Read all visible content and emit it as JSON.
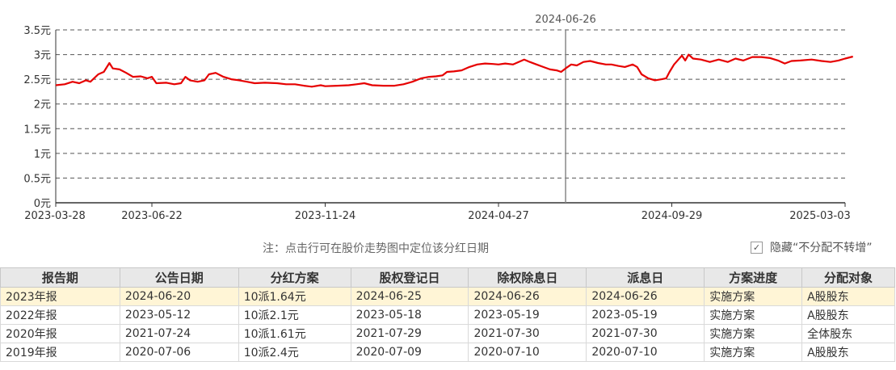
{
  "chart_data": {
    "type": "line",
    "y_ticks": [
      "3.5元",
      "3元",
      "2.5元",
      "2元",
      "1.5元",
      "1元",
      "0.5元",
      "0元"
    ],
    "y_tick_values": [
      3.5,
      3.0,
      2.5,
      2.0,
      1.5,
      1.0,
      0.5,
      0.0
    ],
    "ylim": [
      0,
      3.5
    ],
    "x_ticks": [
      "2023-03-28",
      "2023-06-22",
      "2023-11-24",
      "2024-04-27",
      "2024-09-29",
      "2025-03-03"
    ],
    "xlim": [
      "2023-03-28",
      "2025-03-03"
    ],
    "marker_label": "2024-06-26",
    "marker_date": "2024-06-26",
    "grid": "horizontal dashed",
    "series": [
      {
        "color": "#e60000",
        "points": [
          [
            "2023-03-28",
            2.38
          ],
          [
            "2023-04-05",
            2.4
          ],
          [
            "2023-04-12",
            2.45
          ],
          [
            "2023-04-18",
            2.42
          ],
          [
            "2023-04-24",
            2.48
          ],
          [
            "2023-04-28",
            2.45
          ],
          [
            "2023-05-05",
            2.6
          ],
          [
            "2023-05-10",
            2.65
          ],
          [
            "2023-05-15",
            2.83
          ],
          [
            "2023-05-18",
            2.72
          ],
          [
            "2023-05-24",
            2.7
          ],
          [
            "2023-05-30",
            2.63
          ],
          [
            "2023-06-05",
            2.55
          ],
          [
            "2023-06-12",
            2.56
          ],
          [
            "2023-06-18",
            2.52
          ],
          [
            "2023-06-22",
            2.55
          ],
          [
            "2023-06-26",
            2.42
          ],
          [
            "2023-07-05",
            2.43
          ],
          [
            "2023-07-12",
            2.4
          ],
          [
            "2023-07-18",
            2.42
          ],
          [
            "2023-07-22",
            2.55
          ],
          [
            "2023-07-26",
            2.48
          ],
          [
            "2023-08-02",
            2.45
          ],
          [
            "2023-08-08",
            2.48
          ],
          [
            "2023-08-12",
            2.6
          ],
          [
            "2023-08-18",
            2.63
          ],
          [
            "2023-08-25",
            2.55
          ],
          [
            "2023-09-01",
            2.5
          ],
          [
            "2023-09-08",
            2.48
          ],
          [
            "2023-09-15",
            2.45
          ],
          [
            "2023-09-22",
            2.42
          ],
          [
            "2023-10-01",
            2.43
          ],
          [
            "2023-10-12",
            2.42
          ],
          [
            "2023-10-20",
            2.4
          ],
          [
            "2023-10-28",
            2.4
          ],
          [
            "2023-11-05",
            2.37
          ],
          [
            "2023-11-12",
            2.35
          ],
          [
            "2023-11-20",
            2.38
          ],
          [
            "2023-11-24",
            2.36
          ],
          [
            "2023-12-05",
            2.37
          ],
          [
            "2023-12-15",
            2.38
          ],
          [
            "2023-12-22",
            2.4
          ],
          [
            "2023-12-29",
            2.42
          ],
          [
            "2024-01-05",
            2.38
          ],
          [
            "2024-01-15",
            2.37
          ],
          [
            "2024-01-25",
            2.37
          ],
          [
            "2024-02-02",
            2.4
          ],
          [
            "2024-02-10",
            2.45
          ],
          [
            "2024-02-18",
            2.52
          ],
          [
            "2024-02-25",
            2.55
          ],
          [
            "2024-03-02",
            2.56
          ],
          [
            "2024-03-08",
            2.58
          ],
          [
            "2024-03-12",
            2.65
          ],
          [
            "2024-03-18",
            2.66
          ],
          [
            "2024-03-25",
            2.68
          ],
          [
            "2024-04-01",
            2.75
          ],
          [
            "2024-04-08",
            2.8
          ],
          [
            "2024-04-15",
            2.82
          ],
          [
            "2024-04-22",
            2.81
          ],
          [
            "2024-04-27",
            2.8
          ],
          [
            "2024-05-03",
            2.82
          ],
          [
            "2024-05-10",
            2.8
          ],
          [
            "2024-05-15",
            2.85
          ],
          [
            "2024-05-20",
            2.9
          ],
          [
            "2024-05-25",
            2.85
          ],
          [
            "2024-05-31",
            2.8
          ],
          [
            "2024-06-06",
            2.75
          ],
          [
            "2024-06-12",
            2.7
          ],
          [
            "2024-06-18",
            2.68
          ],
          [
            "2024-06-22",
            2.65
          ],
          [
            "2024-06-26",
            2.72
          ],
          [
            "2024-07-01",
            2.8
          ],
          [
            "2024-07-06",
            2.78
          ],
          [
            "2024-07-12",
            2.85
          ],
          [
            "2024-07-18",
            2.87
          ],
          [
            "2024-07-25",
            2.83
          ],
          [
            "2024-08-01",
            2.8
          ],
          [
            "2024-08-06",
            2.8
          ],
          [
            "2024-08-12",
            2.77
          ],
          [
            "2024-08-18",
            2.75
          ],
          [
            "2024-08-25",
            2.8
          ],
          [
            "2024-08-29",
            2.75
          ],
          [
            "2024-09-02",
            2.6
          ],
          [
            "2024-09-08",
            2.52
          ],
          [
            "2024-09-14",
            2.48
          ],
          [
            "2024-09-20",
            2.5
          ],
          [
            "2024-09-24",
            2.52
          ],
          [
            "2024-09-27",
            2.65
          ],
          [
            "2024-10-01",
            2.8
          ],
          [
            "2024-10-08",
            2.98
          ],
          [
            "2024-10-11",
            2.88
          ],
          [
            "2024-10-14",
            3.0
          ],
          [
            "2024-10-18",
            2.92
          ],
          [
            "2024-10-25",
            2.9
          ],
          [
            "2024-11-02",
            2.85
          ],
          [
            "2024-11-10",
            2.9
          ],
          [
            "2024-11-18",
            2.85
          ],
          [
            "2024-11-25",
            2.92
          ],
          [
            "2024-12-02",
            2.88
          ],
          [
            "2024-12-10",
            2.95
          ],
          [
            "2024-12-18",
            2.95
          ],
          [
            "2024-12-26",
            2.93
          ],
          [
            "2025-01-02",
            2.88
          ],
          [
            "2025-01-08",
            2.82
          ],
          [
            "2025-01-14",
            2.87
          ],
          [
            "2025-01-22",
            2.88
          ],
          [
            "2025-02-01",
            2.9
          ],
          [
            "2025-02-10",
            2.87
          ],
          [
            "2025-02-18",
            2.85
          ],
          [
            "2025-02-25",
            2.88
          ],
          [
            "2025-03-03",
            2.92
          ],
          [
            "2025-03-10",
            2.96
          ]
        ]
      }
    ]
  },
  "note": "注：点击行可在股价走势图中定位该分红日期",
  "hide_option": {
    "label": "隐藏“不分配不转增”",
    "checked": true,
    "check_glyph": "✓"
  },
  "table": {
    "headers": [
      "报告期",
      "公告日期",
      "分红方案",
      "股权登记日",
      "除权除息日",
      "派息日",
      "方案进度",
      "分配对象"
    ],
    "rows": [
      [
        "2023年报",
        "2024-06-20",
        "10派1.64元",
        "2024-06-25",
        "2024-06-26",
        "2024-06-26",
        "实施方案",
        "A股股东"
      ],
      [
        "2022年报",
        "2023-05-12",
        "10派2.1元",
        "2023-05-18",
        "2023-05-19",
        "2023-05-19",
        "实施方案",
        "A股股东"
      ],
      [
        "2020年报",
        "2021-07-24",
        "10派1.61元",
        "2021-07-29",
        "2021-07-30",
        "2021-07-30",
        "实施方案",
        "全体股东"
      ],
      [
        "2019年报",
        "2020-07-06",
        "10派2.4元",
        "2020-07-09",
        "2020-07-10",
        "2020-07-10",
        "实施方案",
        "A股股东"
      ]
    ],
    "selected_row": 0,
    "selected_color": "#fff5d6"
  }
}
